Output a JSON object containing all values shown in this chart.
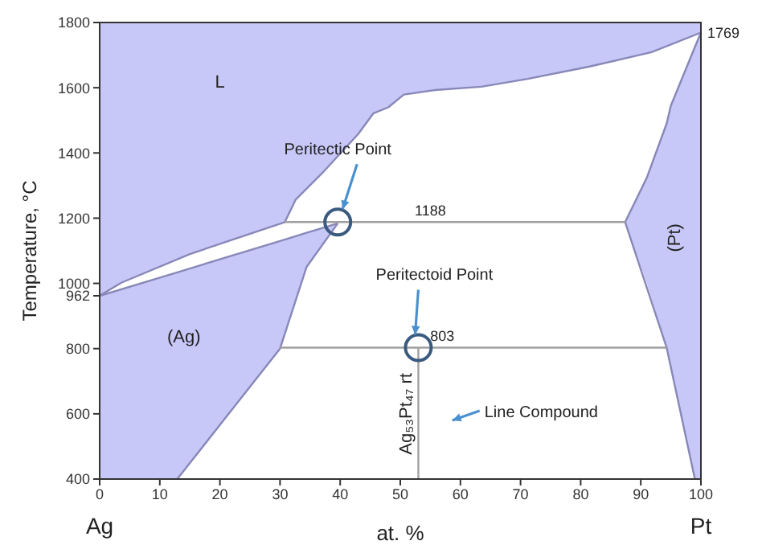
{
  "chart_data": {
    "type": "line",
    "xlabel": "at. %",
    "ylabel": "Temperature, °C",
    "xlim": [
      0,
      100
    ],
    "xticks": [
      0,
      10,
      20,
      30,
      40,
      50,
      60,
      70,
      80,
      90,
      100
    ],
    "ylim": [
      400,
      1800
    ],
    "yticks": [
      400,
      600,
      800,
      962,
      1000,
      1200,
      1400,
      1600,
      1800
    ],
    "series": [
      {
        "color": "#8888b8",
        "x": [
          0,
          3.6,
          15,
          30.8,
          32.6,
          37,
          43,
          45.5,
          48,
          50.6,
          55.8,
          63.5,
          71.2,
          81.5,
          91.8,
          100
        ],
        "values": [
          962,
          1002,
          1090,
          1188,
          1257,
          1338,
          1458,
          1521,
          1540,
          1579,
          1593,
          1603,
          1627,
          1665,
          1709,
          1769
        ],
        "lower": [
          962,
          1002,
          1090,
          1188,
          1257,
          1338,
          1458,
          1521,
          1540,
          1579,
          1593,
          1603,
          1627,
          1665,
          1709,
          1769
        ],
        "upper": [
          1800,
          1800,
          1800,
          1800,
          1800,
          1800,
          1800,
          1800,
          1800,
          1800,
          1800,
          1800,
          1800,
          1800,
          1800,
          1800
        ]
      },
      {
        "color": "#8888b8",
        "x": [
          0,
          12.9,
          30,
          34.4,
          39.6
        ],
        "values": [
          962,
          1034,
          1130,
          1155,
          1184
        ],
        "lower": [
          400,
          400,
          800,
          1050,
          1184
        ],
        "upper": [
          962,
          1034,
          1130,
          1155,
          1184
        ]
      },
      {
        "color": "#8888b8",
        "x": [
          12.9,
          30,
          34.4,
          39.6
        ],
        "values": [
          400,
          800,
          1050,
          1184
        ]
      },
      {
        "color": "#8888b8",
        "x": [
          87.4,
          91,
          94.3,
          95,
          99,
          100
        ],
        "values": [
          1188,
          1324,
          1490,
          1545,
          1725,
          1769
        ],
        "lower": [
          1188,
          1000,
          803,
          743,
          400,
          400
        ],
        "upper": [
          1188,
          1324,
          1490,
          1545,
          1725,
          1769
        ]
      },
      {
        "color": "#8888b8",
        "x": [
          87.4,
          94.3,
          99
        ],
        "values": [
          1188,
          803,
          400
        ]
      },
      {
        "color": "#a0a0a0",
        "x": [
          30.8,
          87.4
        ],
        "values": [
          1188,
          1188
        ]
      },
      {
        "color": "#a0a0a0",
        "x": [
          30,
          94.3
        ],
        "values": [
          803,
          803
        ]
      },
      {
        "color": "#a0a0a0",
        "x": [
          53,
          53
        ],
        "values": [
          400,
          803
        ]
      },
      {
        "type": "scatter",
        "color": "#3a5a80",
        "marker": "circle",
        "x": [
          39.6,
          53
        ],
        "values": [
          1188,
          803
        ]
      }
    ],
    "annotations": [
      "L",
      "(Ag)",
      "(Pt)",
      {
        "text": "1188",
        "x": 55,
        "y": 1188
      },
      {
        "text": "803",
        "x": 57,
        "y": 803
      },
      {
        "text": "Peritectic Point",
        "x": 39.6,
        "y": 1188
      },
      {
        "text": "Peritectoid Point",
        "x": 53,
        "y": 803
      },
      {
        "text": "Ag₅₃Pt₄₇ rt",
        "x": 53,
        "y": 600
      },
      "Line Compound",
      "Ag",
      "Pt",
      "1769"
    ]
  }
}
